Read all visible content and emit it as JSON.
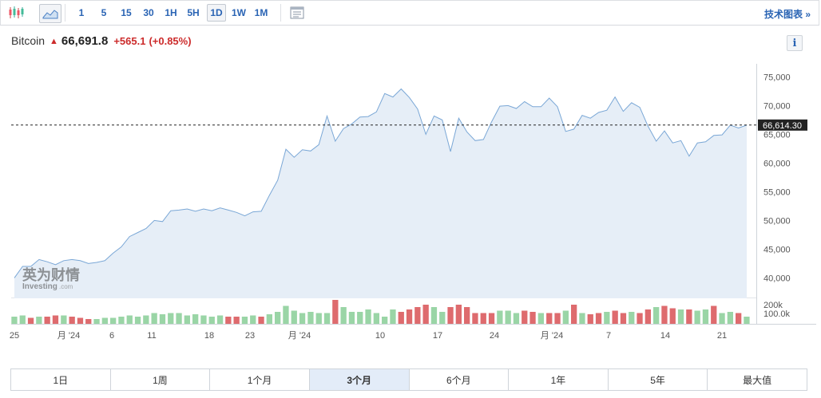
{
  "toolbar": {
    "intervals": [
      "1",
      "5",
      "15",
      "30",
      "1H",
      "5H",
      "1D",
      "1W",
      "1M"
    ],
    "active_interval": "1D",
    "tech_chart_link": "技术图表 »"
  },
  "header": {
    "name": "Bitcoin",
    "price": "66,691.8",
    "change": "+565.1",
    "change_pct": "(+0.85%)",
    "info_label": "i"
  },
  "watermark": {
    "cn": "英为财情",
    "en": "Investing",
    "suffix": ".com"
  },
  "colors": {
    "accent": "#2a64b4",
    "down_red": "#cc2b2b",
    "line": "#7aa7d6",
    "area": "#e6eef7",
    "vol_up": "#9ad5a6",
    "vol_down": "#de6b6e"
  },
  "chart_data": {
    "type": "area",
    "title": "",
    "y_axis": {
      "ticks": [
        "75,000",
        "70,000",
        "65,000",
        "60,000",
        "55,000",
        "50,000",
        "45,000",
        "40,000"
      ],
      "values": [
        75000,
        70000,
        65000,
        60000,
        55000,
        50000,
        45000,
        40000
      ],
      "ylim": [
        37000,
        77000
      ]
    },
    "current_value": 66614.3,
    "current_label": "66,614.30",
    "x_labels": [
      "25",
      "月 '24",
      "6",
      "11",
      "18",
      "23",
      "月 '24",
      "10",
      "17",
      "24",
      "月 '24",
      "7",
      "14",
      "21"
    ],
    "prices": [
      40000,
      42000,
      42000,
      43200,
      42800,
      42300,
      43000,
      43200,
      43000,
      42500,
      42700,
      43000,
      44300,
      45400,
      47200,
      47900,
      48600,
      50000,
      49800,
      51700,
      51800,
      52000,
      51600,
      52000,
      51700,
      52200,
      51800,
      51400,
      50800,
      51500,
      51600,
      54400,
      57000,
      62400,
      61000,
      62300,
      62100,
      63200,
      68200,
      63800,
      66000,
      66800,
      68000,
      68100,
      68900,
      72100,
      71500,
      72900,
      71400,
      69400,
      65000,
      68200,
      67500,
      62000,
      67800,
      65400,
      63900,
      64100,
      67200,
      69900,
      70000,
      69500,
      70700,
      69800,
      69800,
      71300,
      69800,
      65500,
      65900,
      68300,
      67800,
      68800,
      69200,
      71500,
      69000,
      70500,
      69700,
      66400,
      63800,
      65600,
      63500,
      63900,
      61200,
      63500,
      63700,
      64800,
      64900,
      66600,
      66100,
      66600
    ],
    "volume_axis": {
      "ticks": [
        "200k",
        "100.0k"
      ]
    },
    "volume_dir": [
      "u",
      "u",
      "d",
      "u",
      "d",
      "d",
      "u",
      "d",
      "d",
      "d",
      "u",
      "u",
      "u",
      "u",
      "u",
      "u",
      "u",
      "u",
      "u",
      "u",
      "u",
      "u",
      "u",
      "u",
      "u",
      "u",
      "d",
      "d",
      "u",
      "u",
      "d",
      "u",
      "u",
      "u",
      "u",
      "u",
      "u",
      "u",
      "u",
      "d",
      "u",
      "u",
      "u",
      "u",
      "u",
      "u",
      "u",
      "d",
      "d",
      "d",
      "d",
      "u",
      "u",
      "d",
      "d",
      "d",
      "d",
      "d",
      "d",
      "u",
      "u",
      "u",
      "d",
      "d",
      "u",
      "d",
      "d",
      "u",
      "d",
      "u",
      "d",
      "d",
      "u",
      "d",
      "d",
      "u",
      "d",
      "d",
      "u",
      "d",
      "d",
      "u",
      "d",
      "u",
      "u",
      "d",
      "u",
      "u",
      "d",
      "u"
    ],
    "volume_frac": [
      0.3,
      0.35,
      0.25,
      0.3,
      0.3,
      0.35,
      0.35,
      0.3,
      0.25,
      0.2,
      0.2,
      0.25,
      0.25,
      0.3,
      0.35,
      0.3,
      0.35,
      0.45,
      0.4,
      0.45,
      0.45,
      0.35,
      0.4,
      0.35,
      0.3,
      0.35,
      0.3,
      0.3,
      0.3,
      0.35,
      0.3,
      0.4,
      0.5,
      0.75,
      0.55,
      0.45,
      0.5,
      0.45,
      0.45,
      1.0,
      0.7,
      0.5,
      0.5,
      0.6,
      0.45,
      0.3,
      0.6,
      0.5,
      0.6,
      0.7,
      0.8,
      0.7,
      0.5,
      0.7,
      0.8,
      0.7,
      0.45,
      0.45,
      0.45,
      0.55,
      0.55,
      0.45,
      0.55,
      0.5,
      0.45,
      0.45,
      0.45,
      0.55,
      0.8,
      0.45,
      0.4,
      0.45,
      0.5,
      0.55,
      0.45,
      0.5,
      0.45,
      0.6,
      0.7,
      0.75,
      0.65,
      0.6,
      0.6,
      0.55,
      0.6,
      0.75,
      0.45,
      0.5,
      0.45,
      0.3
    ]
  },
  "ranges": [
    "1日",
    "1周",
    "1个月",
    "3个月",
    "6个月",
    "1年",
    "5年",
    "最大值"
  ],
  "active_range": "3个月"
}
